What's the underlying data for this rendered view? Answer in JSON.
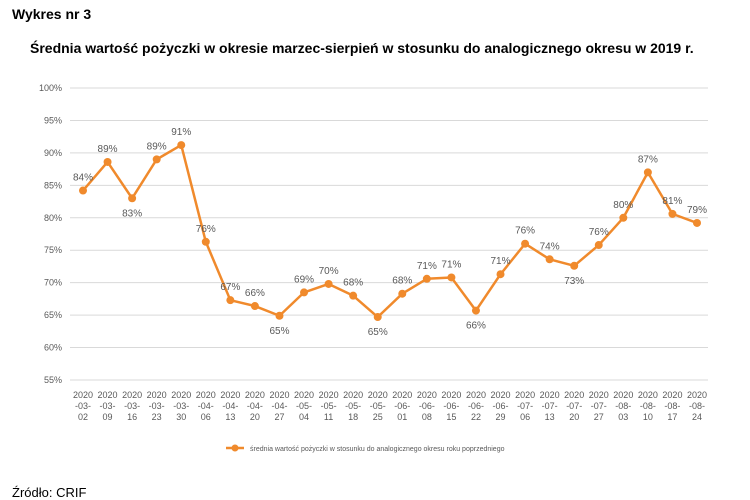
{
  "header": {
    "label": "Wykres nr 3"
  },
  "title": "Średnia wartość pożyczki w okresie marzec-sierpień w stosunku do analogicznego okresu w 2019 r.",
  "source": "Źródło: CRIF",
  "colors": {
    "series": "#F08A2C",
    "grid": "#D9D9D9",
    "axis_text": "#595959"
  },
  "chart_data": {
    "type": "line",
    "title": "Średnia wartość pożyczki w okresie marzec-sierpień w stosunku do analogicznego okresu w 2019 r.",
    "x": [
      [
        "2020",
        "-03-",
        "02"
      ],
      [
        "2020",
        "-03-",
        "09"
      ],
      [
        "2020",
        "-03-",
        "16"
      ],
      [
        "2020",
        "-03-",
        "23"
      ],
      [
        "2020",
        "-03-",
        "30"
      ],
      [
        "2020",
        "-04-",
        "06"
      ],
      [
        "2020",
        "-04-",
        "13"
      ],
      [
        "2020",
        "-04-",
        "20"
      ],
      [
        "2020",
        "-04-",
        "27"
      ],
      [
        "2020",
        "-05-",
        "04"
      ],
      [
        "2020",
        "-05-",
        "11"
      ],
      [
        "2020",
        "-05-",
        "18"
      ],
      [
        "2020",
        "-05-",
        "25"
      ],
      [
        "2020",
        "-06-",
        "01"
      ],
      [
        "2020",
        "-06-",
        "08"
      ],
      [
        "2020",
        "-06-",
        "15"
      ],
      [
        "2020",
        "-06-",
        "22"
      ],
      [
        "2020",
        "-06-",
        "29"
      ],
      [
        "2020",
        "-07-",
        "06"
      ],
      [
        "2020",
        "-07-",
        "13"
      ],
      [
        "2020",
        "-07-",
        "20"
      ],
      [
        "2020",
        "-07-",
        "27"
      ],
      [
        "2020",
        "-08-",
        "03"
      ],
      [
        "2020",
        "-08-",
        "10"
      ],
      [
        "2020",
        "-08-",
        "17"
      ],
      [
        "2020",
        "-08-",
        "24"
      ]
    ],
    "series": [
      {
        "name": "średnia wartość pożyczki w stosunku do analogicznego okresu roku poprzedniego",
        "values": [
          84.2,
          88.6,
          83.0,
          89.0,
          91.2,
          76.3,
          67.3,
          66.4,
          64.9,
          68.5,
          69.8,
          68.0,
          64.7,
          68.3,
          70.6,
          70.8,
          65.7,
          71.3,
          76.0,
          73.6,
          72.6,
          75.8,
          80.0,
          87.0,
          80.6,
          79.2
        ],
        "labels": [
          "84%",
          "89%",
          "83%",
          "89%",
          "91%",
          "76%",
          "67%",
          "66%",
          "65%",
          "69%",
          "70%",
          "68%",
          "65%",
          "68%",
          "71%",
          "71%",
          "66%",
          "71%",
          "76%",
          "74%",
          "73%",
          "76%",
          "80%",
          "87%",
          "81%",
          "79%"
        ]
      }
    ],
    "yticks": [
      "55%",
      "60%",
      "65%",
      "70%",
      "75%",
      "80%",
      "85%",
      "90%",
      "95%",
      "100%"
    ],
    "ylim": [
      55,
      100
    ],
    "grid": true,
    "legend_position": "bottom"
  }
}
